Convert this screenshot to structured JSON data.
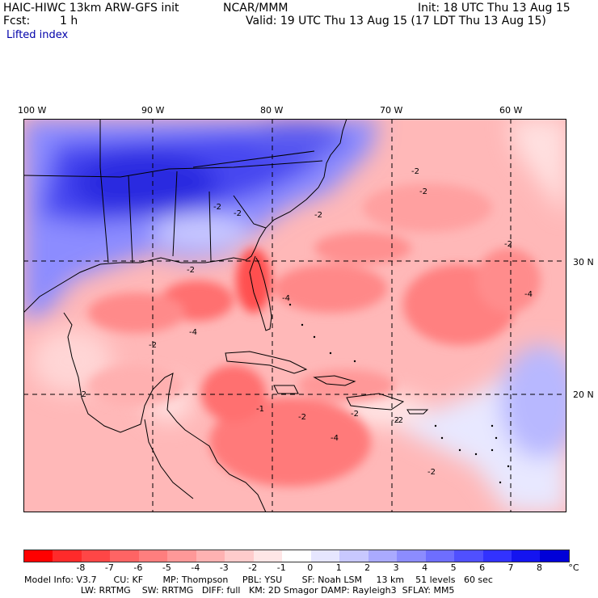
{
  "header": {
    "model": "HAIC-HIWC 13km ARW-GFS init",
    "center": "NCAR/MMM",
    "init": "Init: 18 UTC Thu 13 Aug 15",
    "fcst_label": "Fcst:",
    "fcst_value": "1 h",
    "valid": "Valid: 19 UTC Thu 13 Aug 15 (17 LDT Thu 13 Aug 15)",
    "field": "Lifted index"
  },
  "map": {
    "lon_labels": [
      "100 W",
      "90 W",
      "80 W",
      "70 W",
      "60 W"
    ],
    "lat_labels": [
      "30 N",
      "20 N"
    ],
    "contour_labels": [
      "-2",
      "-2",
      "-2",
      "-2",
      "-2",
      "-2",
      "-2",
      "-2",
      "-4",
      "-4",
      "-4",
      "-2",
      "-2",
      "-1",
      "-2",
      "-2",
      "-2",
      "-2",
      "-4"
    ]
  },
  "colorbar": {
    "ticks": [
      "-8",
      "-7",
      "-6",
      "-5",
      "-4",
      "-3",
      "-2",
      "-1",
      "0",
      "1",
      "2",
      "3",
      "4",
      "5",
      "6",
      "7",
      "8"
    ],
    "unit": "°C",
    "colors": [
      "#ff0000",
      "#ff2a2a",
      "#ff4646",
      "#ff6464",
      "#ff7e7e",
      "#ff9898",
      "#ffb2b2",
      "#ffcccc",
      "#ffe6e6",
      "#ffffff",
      "#e6e6ff",
      "#c8c8ff",
      "#aaaaff",
      "#8c8cff",
      "#6e6eff",
      "#5050ff",
      "#3232ff",
      "#1414f0",
      "#0000d8"
    ]
  },
  "model_info": {
    "line1": "Model Info: V3.7      CU: KF       MP: Thompson     PBL: YSU       SF: Noah LSM     13 km    51 levels   60 sec",
    "line2": "                    LW: RRTMG    SW: RRTMG   DIFF: full   KM: 2D Smagor DAMP: Rayleigh3  SFLAY: MM5"
  }
}
